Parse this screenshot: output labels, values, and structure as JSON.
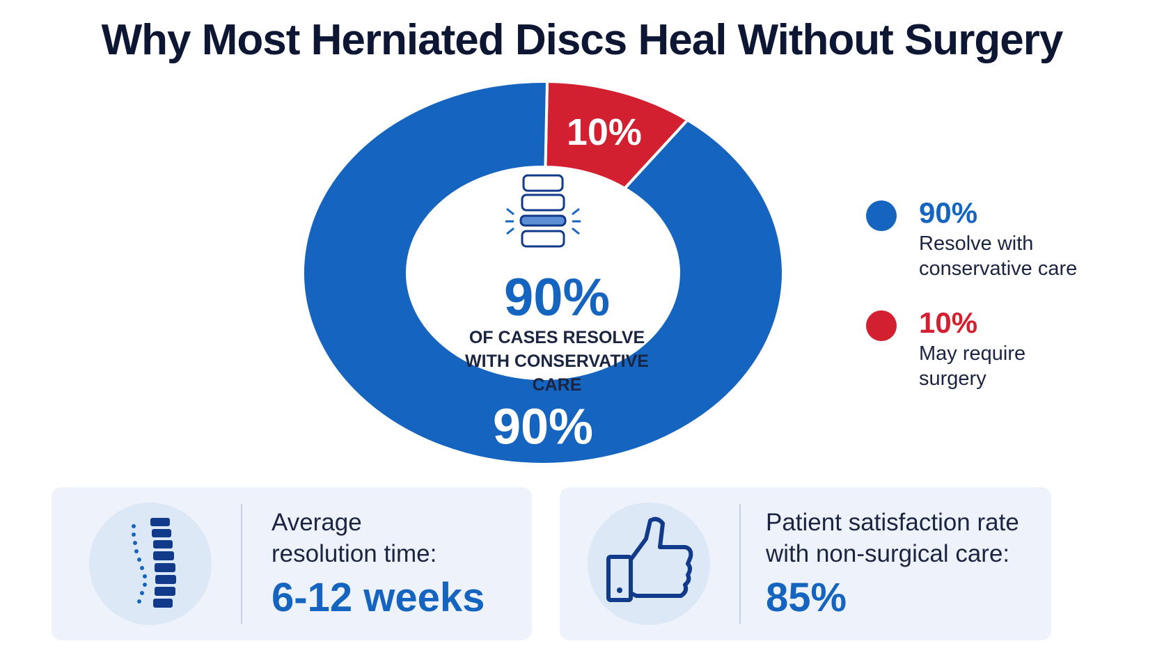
{
  "title": "Why Most Herniated Discs Heal Without Surgery",
  "chart_data": {
    "type": "pie",
    "categories": [
      "Resolve with conservative care",
      "May require surgery"
    ],
    "values": [
      90,
      10
    ],
    "slice_labels": [
      "90%",
      "10%"
    ],
    "colors": [
      "#1565c0",
      "#d32030"
    ],
    "legend_position": "right"
  },
  "center": {
    "value": "90%",
    "caption_line1": "OF CASES RESOLVE",
    "caption_line2": "WITH CONSERVATIVE",
    "caption_line3": "CARE",
    "icon": "spine-disc-icon"
  },
  "legend": [
    {
      "value": "90%",
      "label_line1": "Resolve with",
      "label_line2": "conservative care",
      "color": "#1565c0"
    },
    {
      "value": "10%",
      "label_line1": "May require",
      "label_line2": "surgery",
      "color": "#d32030"
    }
  ],
  "cards": [
    {
      "label_line1": "Average",
      "label_line2": "resolution time:",
      "value": "6-12 weeks",
      "icon": "spine-icon"
    },
    {
      "label_line1": "Patient satisfaction rate",
      "label_line2": "with non-surgical care:",
      "value": "85%",
      "icon": "thumbs-up-icon"
    }
  ]
}
